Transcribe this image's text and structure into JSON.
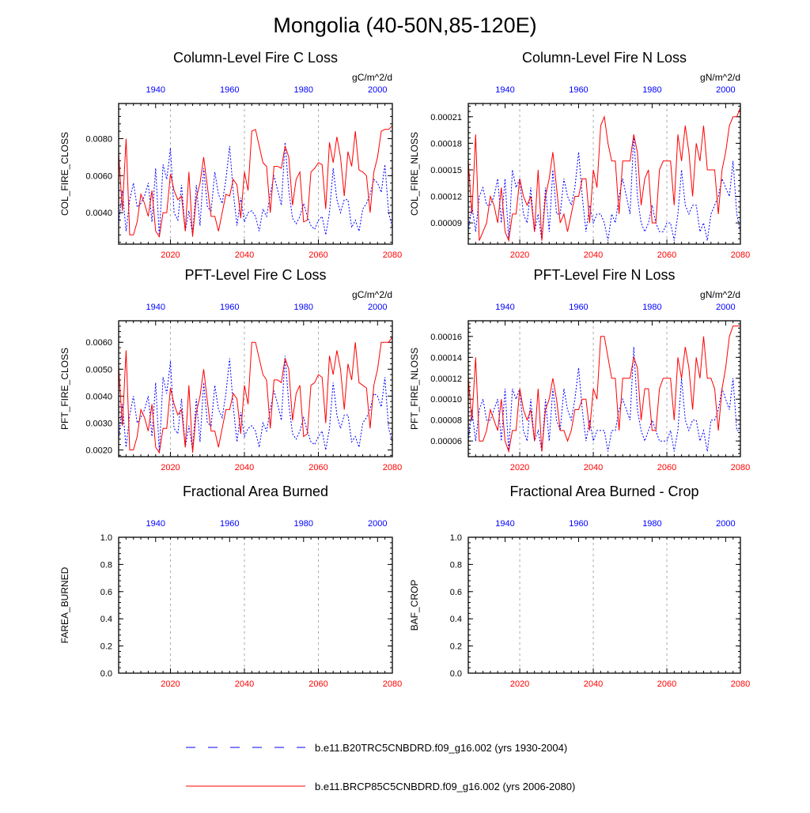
{
  "page": {
    "title": "Mongolia (40-50N,85-120E)"
  },
  "colors": {
    "series_historical": "#0000ff",
    "series_future": "#ff0000",
    "grid": "#aaaaaa",
    "axis": "#000000"
  },
  "chart_data": [
    {
      "type": "line",
      "title": "Column-Level Fire C Loss",
      "units": "gC/m^2/d",
      "ylabel": "COL_FIRE_CLOSS",
      "ylim": [
        0.0023,
        0.0099
      ],
      "yticks": [
        0.004,
        0.006,
        0.008
      ],
      "ytick_labels": [
        "0.0040",
        "0.0060",
        "0.0080"
      ],
      "x_bottom": {
        "label_color": "red",
        "range": [
          2006,
          2080
        ],
        "ticks": [
          2020,
          2040,
          2060,
          2080
        ]
      },
      "x_top": {
        "label_color": "blue",
        "range": [
          1930,
          2004
        ],
        "ticks": [
          1940,
          1960,
          1980,
          2000
        ]
      },
      "series": [
        {
          "name": "b.e11.B20TRC5CNBDRD.f09_g16.002 (yrs 1930-2004)",
          "x_axis": "top",
          "style": "dashed",
          "x_start": 1930,
          "values": [
            0.0034,
            0.0052,
            0.003,
            0.0047,
            0.0056,
            0.0043,
            0.0045,
            0.0049,
            0.0056,
            0.0035,
            0.0064,
            0.0027,
            0.0066,
            0.0058,
            0.0075,
            0.004,
            0.0036,
            0.0055,
            0.003,
            0.0041,
            0.0028,
            0.0055,
            0.0033,
            0.0064,
            0.0043,
            0.0041,
            0.0062,
            0.005,
            0.0045,
            0.0058,
            0.0076,
            0.0051,
            0.0033,
            0.0048,
            0.0035,
            0.004,
            0.0041,
            0.0038,
            0.003,
            0.0042,
            0.0038,
            0.005,
            0.006,
            0.0052,
            0.0044,
            0.0078,
            0.0052,
            0.0037,
            0.0034,
            0.0038,
            0.0045,
            0.0038,
            0.0033,
            0.0031,
            0.0036,
            0.0038,
            0.0028,
            0.004,
            0.0064,
            0.0047,
            0.004,
            0.0047,
            0.0047,
            0.0032,
            0.0036,
            0.003,
            0.0042,
            0.0045,
            0.005,
            0.0058,
            0.0056,
            0.0051,
            0.0066,
            0.004,
            0.0032
          ]
        },
        {
          "name": "b.e11.BRCP85C5CNBDRD.f09_g16.002 (yrs 2006-2080)",
          "x_axis": "bottom",
          "style": "solid",
          "x_start": 2006,
          "values": [
            0.0072,
            0.0041,
            0.008,
            0.0028,
            0.0028,
            0.0035,
            0.005,
            0.0045,
            0.0038,
            0.0052,
            0.003,
            0.0027,
            0.004,
            0.004,
            0.0061,
            0.0052,
            0.0047,
            0.0049,
            0.003,
            0.0062,
            0.0027,
            0.0048,
            0.0056,
            0.007,
            0.0054,
            0.0038,
            0.0038,
            0.003,
            0.004,
            0.005,
            0.0049,
            0.0058,
            0.0055,
            0.0037,
            0.0062,
            0.0052,
            0.0084,
            0.0085,
            0.0076,
            0.0067,
            0.0065,
            0.004,
            0.0065,
            0.0065,
            0.0064,
            0.0076,
            0.007,
            0.0044,
            0.0058,
            0.0062,
            0.0035,
            0.0036,
            0.0062,
            0.0064,
            0.0067,
            0.0066,
            0.0042,
            0.0078,
            0.0067,
            0.0081,
            0.007,
            0.0049,
            0.0073,
            0.0065,
            0.0084,
            0.0063,
            0.0062,
            0.006,
            0.004,
            0.0062,
            0.007,
            0.0084,
            0.0085,
            0.0085,
            0.0087
          ]
        }
      ]
    },
    {
      "type": "line",
      "title": "Column-Level Fire N Loss",
      "units": "gN/m^2/d",
      "ylabel": "COL_FIRE_NLOSS",
      "ylim": [
        6.6e-05,
        0.000225
      ],
      "yticks": [
        9e-05,
        0.00012,
        0.00015,
        0.00018,
        0.00021
      ],
      "ytick_labels": [
        "0.00009",
        "0.00012",
        "0.00015",
        "0.00018",
        "0.00021"
      ],
      "x_bottom": {
        "label_color": "red",
        "range": [
          2006,
          2080
        ],
        "ticks": [
          2020,
          2040,
          2060,
          2080
        ]
      },
      "x_top": {
        "label_color": "blue",
        "range": [
          1930,
          2004
        ],
        "ticks": [
          1940,
          1960,
          1980,
          2000
        ]
      },
      "series": [
        {
          "name": "b.e11.B20TRC5CNBDRD.f09_g16.002 (yrs 1930-2004)",
          "x_axis": "top",
          "style": "dashed",
          "x_start": 1930,
          "values": [
            8e-05,
            0.00011,
            8e-05,
            0.00012,
            0.00013,
            0.00011,
            0.00011,
            0.00012,
            0.00014,
            9e-05,
            0.00014,
            7e-05,
            0.00015,
            0.00013,
            0.00014,
            0.0001,
            9e-05,
            0.00013,
            8e-05,
            0.0001,
            7e-05,
            0.00013,
            8e-05,
            0.00015,
            0.0001,
            0.0001,
            0.00014,
            0.00012,
            0.00011,
            0.00013,
            0.00017,
            0.00012,
            8e-05,
            0.00011,
            9e-05,
            0.0001,
            0.0001,
            9e-05,
            7e-05,
            0.0001,
            9e-05,
            0.00012,
            0.00014,
            0.00012,
            0.0001,
            0.00019,
            0.00012,
            9e-05,
            8e-05,
            9e-05,
            0.00011,
            9e-05,
            8e-05,
            8e-05,
            9e-05,
            9e-05,
            7e-05,
            0.0001,
            0.00015,
            0.00011,
            0.0001,
            0.00011,
            0.00011,
            8e-05,
            9e-05,
            7e-05,
            0.0001,
            0.00011,
            0.00012,
            0.00014,
            0.00013,
            0.00012,
            0.00016,
            0.0001,
            8e-05
          ]
        },
        {
          "name": "b.e11.BRCP85C5CNBDRD.f09_g16.002 (yrs 2006-2080)",
          "x_axis": "bottom",
          "style": "solid",
          "x_start": 2006,
          "values": [
            0.00016,
            0.0001,
            0.00019,
            7e-05,
            8e-05,
            9e-05,
            0.00012,
            0.00011,
            9e-05,
            0.00013,
            8e-05,
            7e-05,
            0.0001,
            0.0001,
            0.00014,
            0.00012,
            0.00011,
            0.00012,
            8e-05,
            0.00015,
            7e-05,
            0.00012,
            0.00014,
            0.00017,
            0.00013,
            9e-05,
            0.0001,
            8e-05,
            0.0001,
            0.00012,
            0.00012,
            0.00014,
            0.00014,
            9e-05,
            0.00015,
            0.00013,
            0.0002,
            0.00021,
            0.00018,
            0.00016,
            0.00016,
            0.0001,
            0.00016,
            0.00016,
            0.00016,
            0.00019,
            0.00017,
            0.00011,
            0.00014,
            0.00015,
            9e-05,
            9e-05,
            0.00015,
            0.00016,
            0.00016,
            0.00016,
            0.00011,
            0.00019,
            0.00016,
            0.0002,
            0.00017,
            0.00012,
            0.00018,
            0.00016,
            0.0002,
            0.00015,
            0.00015,
            0.00015,
            0.0001,
            0.00015,
            0.00017,
            0.0002,
            0.00021,
            0.00021,
            0.00022
          ]
        }
      ]
    },
    {
      "type": "line",
      "title": "PFT-Level Fire C Loss",
      "units": "gC/m^2/d",
      "ylabel": "PFT_FIRE_CLOSS",
      "ylim": [
        0.00175,
        0.0068
      ],
      "yticks": [
        0.002,
        0.003,
        0.004,
        0.005,
        0.006
      ],
      "ytick_labels": [
        "0.0020",
        "0.0030",
        "0.0040",
        "0.0050",
        "0.0060"
      ],
      "x_bottom": {
        "label_color": "red",
        "range": [
          2006,
          2080
        ],
        "ticks": [
          2020,
          2040,
          2060,
          2080
        ]
      },
      "x_top": {
        "label_color": "blue",
        "range": [
          1930,
          2004
        ],
        "ticks": [
          1940,
          1960,
          1980,
          2000
        ]
      },
      "series": [
        {
          "name": "b.e11.B20TRC5CNBDRD.f09_g16.002 (yrs 1930-2004)",
          "x_axis": "top",
          "style": "dashed",
          "x_start": 1930,
          "values": [
            0.0024,
            0.0037,
            0.0021,
            0.0033,
            0.004,
            0.003,
            0.0032,
            0.0035,
            0.004,
            0.0025,
            0.0045,
            0.0019,
            0.0047,
            0.0041,
            0.0053,
            0.0028,
            0.0026,
            0.0039,
            0.0021,
            0.0029,
            0.002,
            0.0039,
            0.0023,
            0.0045,
            0.003,
            0.0029,
            0.0044,
            0.0035,
            0.0032,
            0.0041,
            0.0054,
            0.0036,
            0.0023,
            0.0034,
            0.0025,
            0.0028,
            0.0029,
            0.0027,
            0.0021,
            0.003,
            0.0027,
            0.0035,
            0.0042,
            0.0037,
            0.0031,
            0.0055,
            0.0037,
            0.0026,
            0.0024,
            0.0027,
            0.0032,
            0.0027,
            0.0023,
            0.0022,
            0.0025,
            0.0027,
            0.002,
            0.0028,
            0.0045,
            0.0033,
            0.0028,
            0.0033,
            0.0033,
            0.0023,
            0.0025,
            0.0021,
            0.003,
            0.0032,
            0.0035,
            0.0041,
            0.004,
            0.0036,
            0.0047,
            0.0028,
            0.0023
          ]
        },
        {
          "name": "b.e11.BRCP85C5CNBDRD.f09_g16.002 (yrs 2006-2080)",
          "x_axis": "bottom",
          "style": "solid",
          "x_start": 2006,
          "values": [
            0.0051,
            0.0029,
            0.0057,
            0.002,
            0.002,
            0.0025,
            0.0035,
            0.0032,
            0.0027,
            0.0037,
            0.0021,
            0.0019,
            0.0028,
            0.0028,
            0.0043,
            0.0037,
            0.0033,
            0.0035,
            0.0021,
            0.0044,
            0.0019,
            0.0034,
            0.004,
            0.005,
            0.0038,
            0.0027,
            0.0027,
            0.0021,
            0.0028,
            0.0035,
            0.0035,
            0.0041,
            0.0039,
            0.0026,
            0.0044,
            0.0037,
            0.006,
            0.006,
            0.0054,
            0.0048,
            0.0046,
            0.0028,
            0.0046,
            0.0046,
            0.0045,
            0.0054,
            0.005,
            0.0031,
            0.0041,
            0.0044,
            0.0025,
            0.0026,
            0.0044,
            0.0045,
            0.0048,
            0.0047,
            0.003,
            0.0055,
            0.0048,
            0.0057,
            0.005,
            0.0035,
            0.0052,
            0.0046,
            0.006,
            0.0045,
            0.0044,
            0.0043,
            0.0028,
            0.0044,
            0.005,
            0.006,
            0.006,
            0.006,
            0.0062
          ]
        }
      ]
    },
    {
      "type": "line",
      "title": "PFT-Level Fire N Loss",
      "units": "gN/m^2/d",
      "ylabel": "PFT_FIRE_NLOSS",
      "ylim": [
        4.5e-05,
        0.000175
      ],
      "yticks": [
        6e-05,
        8e-05,
        0.0001,
        0.00012,
        0.00014,
        0.00016
      ],
      "ytick_labels": [
        "0.00006",
        "0.00008",
        "0.00010",
        "0.00012",
        "0.00014",
        "0.00016"
      ],
      "x_bottom": {
        "label_color": "red",
        "range": [
          2006,
          2080
        ],
        "ticks": [
          2020,
          2040,
          2060,
          2080
        ]
      },
      "x_top": {
        "label_color": "blue",
        "range": [
          1930,
          2004
        ],
        "ticks": [
          1940,
          1960,
          1980,
          2000
        ]
      },
      "series": [
        {
          "name": "b.e11.B20TRC5CNBDRD.f09_g16.002 (yrs 1930-2004)",
          "x_axis": "top",
          "style": "dashed",
          "x_start": 1930,
          "values": [
            6e-05,
            9e-05,
            6e-05,
            9e-05,
            0.0001,
            8e-05,
            8e-05,
            9e-05,
            0.0001,
            6e-05,
            0.00011,
            5e-05,
            0.00011,
            0.0001,
            0.00011,
            7e-05,
            6e-05,
            0.0001,
            6e-05,
            7e-05,
            5e-05,
            0.0001,
            6e-05,
            0.00011,
            8e-05,
            7e-05,
            0.00011,
            9e-05,
            8e-05,
            0.0001,
            0.00013,
            9e-05,
            6e-05,
            8e-05,
            6e-05,
            7e-05,
            7e-05,
            7e-05,
            5e-05,
            7e-05,
            7e-05,
            9e-05,
            0.0001,
            9e-05,
            8e-05,
            0.00015,
            9e-05,
            7e-05,
            6e-05,
            7e-05,
            8e-05,
            7e-05,
            6e-05,
            6e-05,
            6e-05,
            7e-05,
            5e-05,
            7e-05,
            0.00012,
            8e-05,
            7e-05,
            8e-05,
            8e-05,
            6e-05,
            7e-05,
            5e-05,
            8e-05,
            8e-05,
            9e-05,
            0.00011,
            0.0001,
            9e-05,
            0.00012,
            7e-05,
            7e-05
          ]
        },
        {
          "name": "b.e11.BRCP85C5CNBDRD.f09_g16.002 (yrs 2006-2080)",
          "x_axis": "bottom",
          "style": "solid",
          "x_start": 2006,
          "values": [
            0.00012,
            8e-05,
            0.00014,
            6e-05,
            6e-05,
            7e-05,
            9e-05,
            8e-05,
            7e-05,
            0.0001,
            6e-05,
            5e-05,
            7e-05,
            7e-05,
            0.00011,
            9e-05,
            8e-05,
            9e-05,
            6e-05,
            0.00011,
            5e-05,
            9e-05,
            0.0001,
            0.00012,
            0.0001,
            7e-05,
            7e-05,
            6e-05,
            7e-05,
            9e-05,
            9e-05,
            0.0001,
            0.0001,
            7e-05,
            0.00011,
            0.0001,
            0.00016,
            0.00016,
            0.00014,
            0.00012,
            0.00012,
            7e-05,
            0.00012,
            0.00012,
            0.00012,
            0.00014,
            0.00013,
            8e-05,
            0.00011,
            0.00011,
            7e-05,
            7e-05,
            0.00011,
            0.00012,
            0.00012,
            0.00012,
            8e-05,
            0.00014,
            0.00012,
            0.00015,
            0.00013,
            9e-05,
            0.00014,
            0.00012,
            0.00016,
            0.00012,
            0.00012,
            0.00011,
            7e-05,
            0.00011,
            0.00013,
            0.00016,
            0.00017,
            0.00017,
            0.00017
          ]
        }
      ]
    },
    {
      "type": "line",
      "title": "Fractional Area Burned",
      "units": "",
      "ylabel": "FAREA_BURNED",
      "ylim": [
        0,
        1
      ],
      "yticks": [
        0,
        0.2,
        0.4,
        0.6,
        0.8,
        1
      ],
      "ytick_labels": [
        "0.0",
        "0.2",
        "0.4",
        "0.6",
        "0.8",
        "1.0"
      ],
      "x_bottom": {
        "label_color": "red",
        "range": [
          2006,
          2080
        ],
        "ticks": [
          2020,
          2040,
          2060,
          2080
        ]
      },
      "x_top": {
        "label_color": "blue",
        "range": [
          1930,
          2004
        ],
        "ticks": [
          1940,
          1960,
          1980,
          2000
        ]
      },
      "series": []
    },
    {
      "type": "line",
      "title": "Fractional Area Burned - Crop",
      "units": "",
      "ylabel": "BAF_CROP",
      "ylim": [
        0,
        1
      ],
      "yticks": [
        0,
        0.2,
        0.4,
        0.6,
        0.8,
        1
      ],
      "ytick_labels": [
        "0.0",
        "0.2",
        "0.4",
        "0.6",
        "0.8",
        "1.0"
      ],
      "x_bottom": {
        "label_color": "red",
        "range": [
          2006,
          2080
        ],
        "ticks": [
          2020,
          2040,
          2060,
          2080
        ]
      },
      "x_top": {
        "label_color": "blue",
        "range": [
          1930,
          2004
        ],
        "ticks": [
          1940,
          1960,
          1980,
          2000
        ]
      },
      "series": []
    }
  ],
  "legend": {
    "items": [
      {
        "label": "b.e11.B20TRC5CNBDRD.f09_g16.002 (yrs 1930-2004)",
        "style": "dashed",
        "color": "#0000ff"
      },
      {
        "label": "b.e11.BRCP85C5CNBDRD.f09_g16.002 (yrs 2006-2080)",
        "style": "solid",
        "color": "#ff0000"
      }
    ]
  }
}
